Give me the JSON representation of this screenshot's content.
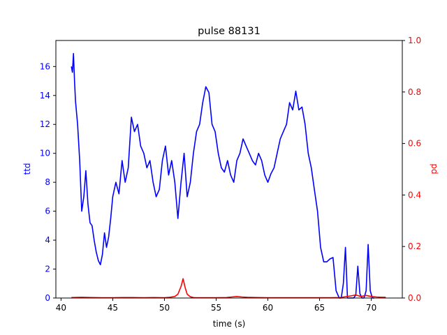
{
  "chart_data": {
    "type": "line",
    "title": "pulse 88131",
    "xlabel": "time (s)",
    "ylabel_left": "ttd",
    "ylabel_right": "pd",
    "xlim": [
      39.5,
      73.0
    ],
    "ylim_left": [
      0,
      17.8
    ],
    "ylim_right": [
      0,
      1.0
    ],
    "x_ticks": [
      40,
      45,
      50,
      55,
      60,
      65,
      70
    ],
    "y_left_ticks": [
      0,
      2,
      4,
      6,
      8,
      10,
      12,
      14,
      16
    ],
    "y_right_ticks": [
      0.0,
      0.2,
      0.4,
      0.6,
      0.8,
      1.0
    ],
    "grid": false,
    "colors": {
      "ttd": "#0000ff",
      "pd": "#ff0000",
      "axes": "#000000"
    },
    "series": [
      {
        "name": "ttd",
        "axis": "left",
        "x": [
          41.0,
          41.1,
          41.2,
          41.3,
          41.4,
          41.6,
          41.8,
          42.0,
          42.2,
          42.4,
          42.6,
          42.8,
          43.0,
          43.2,
          43.4,
          43.6,
          43.8,
          44.0,
          44.2,
          44.4,
          44.6,
          44.8,
          45.0,
          45.3,
          45.6,
          45.9,
          46.2,
          46.5,
          46.8,
          47.1,
          47.4,
          47.7,
          48.0,
          48.3,
          48.6,
          48.9,
          49.2,
          49.5,
          49.8,
          50.1,
          50.4,
          50.7,
          51.0,
          51.3,
          51.6,
          51.9,
          52.2,
          52.5,
          52.8,
          53.1,
          53.4,
          53.7,
          54.0,
          54.3,
          54.6,
          54.9,
          55.2,
          55.5,
          55.8,
          56.1,
          56.4,
          56.7,
          57.0,
          57.3,
          57.6,
          57.9,
          58.2,
          58.5,
          58.8,
          59.1,
          59.4,
          59.7,
          60.0,
          60.3,
          60.6,
          60.9,
          61.2,
          61.5,
          61.8,
          62.1,
          62.4,
          62.7,
          63.0,
          63.3,
          63.6,
          63.9,
          64.2,
          64.5,
          64.8,
          65.1,
          65.4,
          65.7,
          66.0,
          66.3,
          66.6,
          66.9,
          67.1,
          67.3,
          67.5,
          67.7,
          68.0,
          68.3,
          68.5,
          68.7,
          68.9,
          69.1,
          69.3,
          69.5,
          69.7,
          69.9,
          70.1,
          70.3
        ],
        "y": [
          16.0,
          15.6,
          16.9,
          15.0,
          13.6,
          12.0,
          9.5,
          6.0,
          7.0,
          8.8,
          6.5,
          5.2,
          5.0,
          4.0,
          3.2,
          2.6,
          2.3,
          3.0,
          4.5,
          3.5,
          4.2,
          5.5,
          7.0,
          8.0,
          7.2,
          9.5,
          8.0,
          9.0,
          12.5,
          11.5,
          12.0,
          10.5,
          10.0,
          9.0,
          9.5,
          8.0,
          7.0,
          7.5,
          9.5,
          10.5,
          8.5,
          9.5,
          8.0,
          5.5,
          8.0,
          10.0,
          7.0,
          8.0,
          10.0,
          11.5,
          12.0,
          13.5,
          14.6,
          14.2,
          12.0,
          11.5,
          10.0,
          9.0,
          8.7,
          9.5,
          8.5,
          8.0,
          9.5,
          10.0,
          11.0,
          10.5,
          10.0,
          9.5,
          9.2,
          10.0,
          9.5,
          8.5,
          8.0,
          8.6,
          9.0,
          10.0,
          11.0,
          11.5,
          12.0,
          13.5,
          13.0,
          14.3,
          13.0,
          13.2,
          12.0,
          10.0,
          9.0,
          7.5,
          6.0,
          3.5,
          2.5,
          2.5,
          2.7,
          2.8,
          0.5,
          0.0,
          0.0,
          1.0,
          3.5,
          0.0,
          0.0,
          0.0,
          0.2,
          2.2,
          0.3,
          0.0,
          0.0,
          0.5,
          3.7,
          0.5,
          0.0,
          0.0
        ]
      },
      {
        "name": "pd",
        "axis": "right",
        "x": [
          41.0,
          42.0,
          43.0,
          44.0,
          45.0,
          46.0,
          47.0,
          48.0,
          49.0,
          50.0,
          50.5,
          51.0,
          51.3,
          51.6,
          51.8,
          51.9,
          52.0,
          52.2,
          52.5,
          52.8,
          53.0,
          54.0,
          55.0,
          56.0,
          56.5,
          57.0,
          57.5,
          58.0,
          59.0,
          60.0,
          61.0,
          62.0,
          63.0,
          64.0,
          65.0,
          66.0,
          67.0,
          68.0,
          68.5,
          69.0,
          69.5,
          70.0,
          70.5,
          71.0,
          71.4
        ],
        "y": [
          0.002,
          0.003,
          0.002,
          0.001,
          0.001,
          0.002,
          0.002,
          0.001,
          0.002,
          0.001,
          0.003,
          0.006,
          0.015,
          0.045,
          0.075,
          0.058,
          0.04,
          0.015,
          0.005,
          0.002,
          0.001,
          0.001,
          0.001,
          0.002,
          0.004,
          0.006,
          0.004,
          0.003,
          0.002,
          0.001,
          0.001,
          0.001,
          0.001,
          0.001,
          0.001,
          0.001,
          0.002,
          0.008,
          0.012,
          0.006,
          0.01,
          0.006,
          0.004,
          0.003,
          0.003
        ]
      }
    ]
  }
}
